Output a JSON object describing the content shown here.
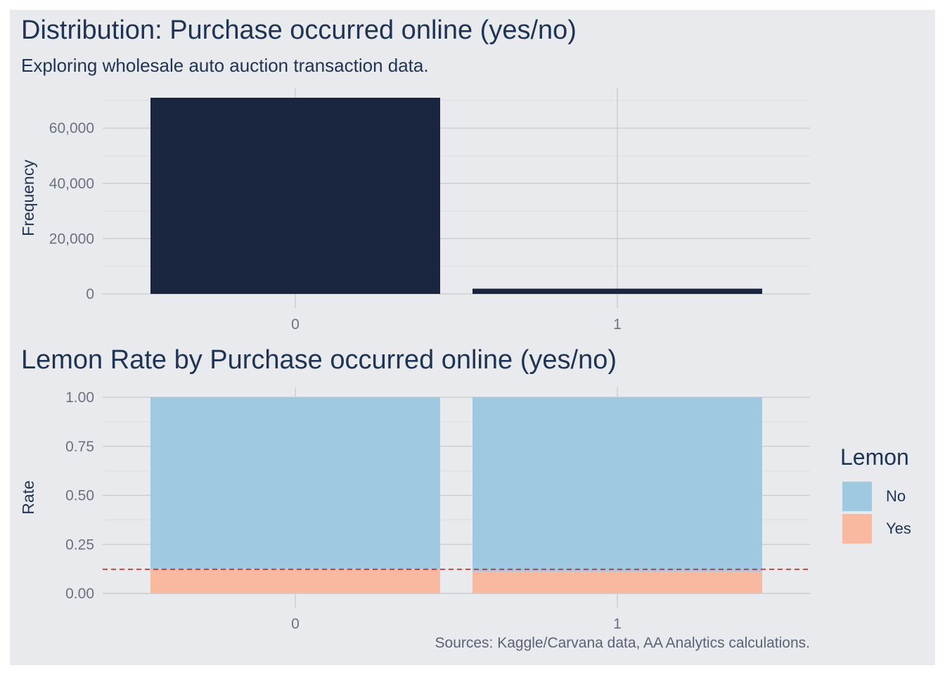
{
  "titles": {
    "top": "Distribution: Purchase occurred online (yes/no)",
    "subtitle": "Exploring wholesale auto auction transaction data.",
    "bottom": "Lemon Rate by Purchase occurred online (yes/no)",
    "caption": "Sources: Kaggle/Carvana data, AA Analytics calculations."
  },
  "legend": {
    "title": "Lemon",
    "items": [
      {
        "label": "No",
        "color": "#9ec9e0"
      },
      {
        "label": "Yes",
        "color": "#f9b9a0"
      }
    ]
  },
  "colors": {
    "bar": "#1a2640",
    "grid": "#c8cad0",
    "grid_minor": "#dcdee2",
    "tick_text": "#6b7182",
    "axis_title": "#1f3354",
    "reference_line": "#cc1f1f"
  },
  "chart_data": [
    {
      "type": "bar",
      "categories": [
        "0",
        "1"
      ],
      "values": [
        71000,
        1900
      ],
      "xlabel": "",
      "ylabel": "Frequency",
      "ylim": [
        0,
        71000
      ],
      "yticks": [
        0,
        20000,
        40000,
        60000
      ],
      "ytick_labels": [
        "0",
        "20,000",
        "40,000",
        "60,000"
      ],
      "grid": true
    },
    {
      "type": "bar",
      "stacked": true,
      "categories": [
        "0",
        "1"
      ],
      "series": [
        {
          "name": "Yes",
          "values": [
            0.125,
            0.112
          ]
        },
        {
          "name": "No",
          "values": [
            0.875,
            0.888
          ]
        }
      ],
      "reference_line": 0.123,
      "xlabel": "",
      "ylabel": "Rate",
      "ylim": [
        0,
        1
      ],
      "yticks": [
        0,
        0.25,
        0.5,
        0.75,
        1.0
      ],
      "ytick_labels": [
        "0.00",
        "0.25",
        "0.50",
        "0.75",
        "1.00"
      ],
      "grid": true,
      "legend_position": "right"
    }
  ]
}
